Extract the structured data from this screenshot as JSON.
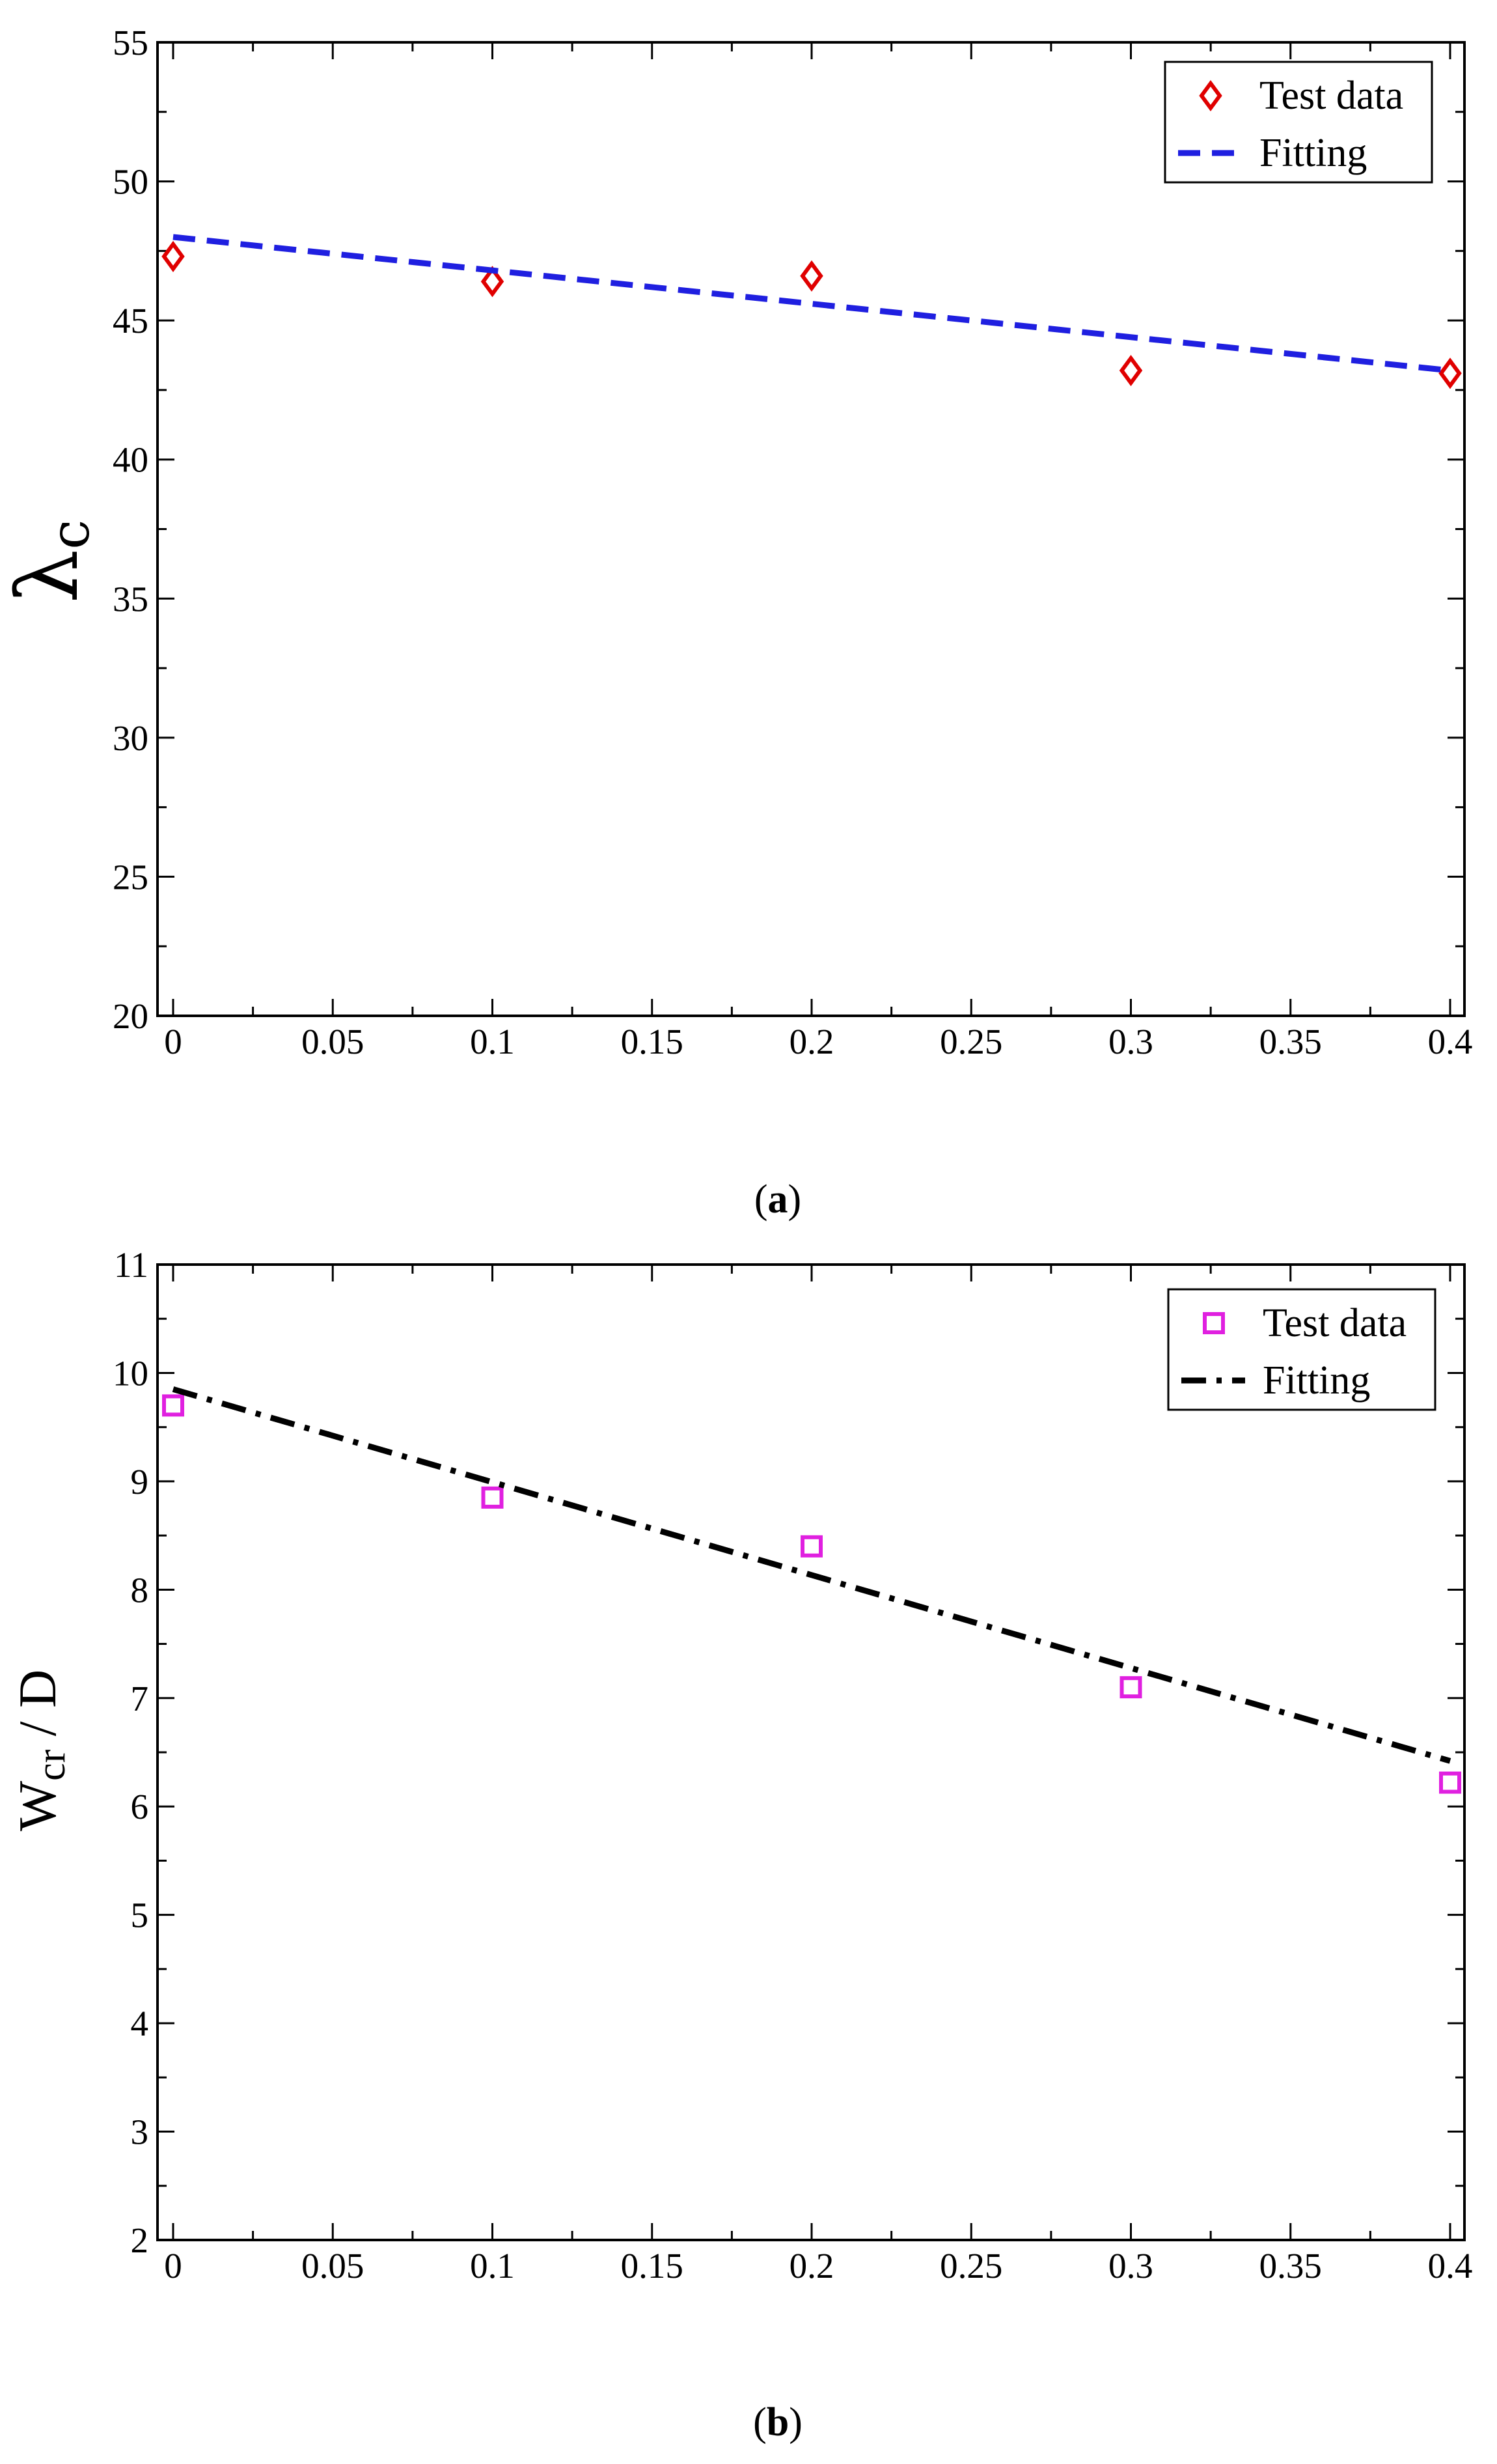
{
  "chart_data": [
    {
      "type": "scatter",
      "caption": {
        "open": "(",
        "letter": "a",
        "close": ")"
      },
      "ylabel": {
        "main": "λ",
        "sub": "c"
      },
      "xlabel": "",
      "xlim": [
        0,
        0.4
      ],
      "ylim": [
        20,
        55
      ],
      "x_ticks": [
        "0",
        "0.05",
        "0.1",
        "0.15",
        "0.2",
        "0.25",
        "0.3",
        "0.35",
        "0.4"
      ],
      "y_ticks": [
        "20",
        "25",
        "30",
        "35",
        "40",
        "45",
        "50",
        "55"
      ],
      "legend": {
        "position": "top-right",
        "entries": [
          "Test data",
          "Fitting"
        ]
      },
      "series": [
        {
          "name": "Test data",
          "kind": "scatter",
          "marker": "diamond",
          "color": "#e00000",
          "x": [
            0,
            0.1,
            0.2,
            0.3,
            0.4
          ],
          "y": [
            47.3,
            46.4,
            46.6,
            43.2,
            43.1
          ]
        },
        {
          "name": "Fitting",
          "kind": "line",
          "dash": "dashed",
          "color": "#1f1fe0",
          "x": [
            0,
            0.4
          ],
          "y": [
            48.0,
            43.2
          ]
        }
      ],
      "grid": false
    },
    {
      "type": "scatter",
      "caption": {
        "open": "(",
        "letter": "b",
        "close": ")"
      },
      "ylabel": {
        "main": "W",
        "sub": "cr",
        "rest": " / D"
      },
      "xlabel": "",
      "xlim": [
        0,
        0.4
      ],
      "ylim": [
        2,
        11
      ],
      "x_ticks": [
        "0",
        "0.05",
        "0.1",
        "0.15",
        "0.2",
        "0.25",
        "0.3",
        "0.35",
        "0.4"
      ],
      "y_ticks": [
        "2",
        "3",
        "4",
        "5",
        "6",
        "7",
        "8",
        "9",
        "10",
        "11"
      ],
      "legend": {
        "position": "top-right",
        "entries": [
          "Test data",
          "Fitting"
        ]
      },
      "series": [
        {
          "name": "Test data",
          "kind": "scatter",
          "marker": "square",
          "color": "#e020e0",
          "x": [
            0,
            0.1,
            0.2,
            0.3,
            0.4
          ],
          "y": [
            9.7,
            8.85,
            8.4,
            7.1,
            6.22
          ]
        },
        {
          "name": "Fitting",
          "kind": "line",
          "dash": "dash-dot",
          "color": "#000000",
          "x": [
            0,
            0.4
          ],
          "y": [
            9.85,
            6.42
          ]
        }
      ],
      "grid": false
    }
  ]
}
